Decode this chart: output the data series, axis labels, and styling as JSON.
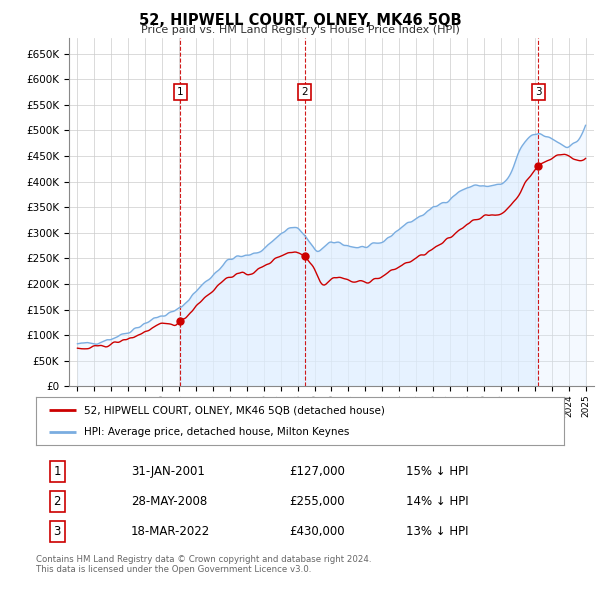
{
  "title": "52, HIPWELL COURT, OLNEY, MK46 5QB",
  "subtitle": "Price paid vs. HM Land Registry's House Price Index (HPI)",
  "property_label": "52, HIPWELL COURT, OLNEY, MK46 5QB (detached house)",
  "hpi_label": "HPI: Average price, detached house, Milton Keynes",
  "sale_points": [
    {
      "date": 2001.08,
      "price": 127000,
      "label": "1"
    },
    {
      "date": 2008.41,
      "price": 255000,
      "label": "2"
    },
    {
      "date": 2022.21,
      "price": 430000,
      "label": "3"
    }
  ],
  "sale_vlines": [
    2001.08,
    2008.41,
    2022.21
  ],
  "table_rows": [
    {
      "num": "1",
      "date": "31-JAN-2001",
      "price": "£127,000",
      "note": "15% ↓ HPI"
    },
    {
      "num": "2",
      "date": "28-MAY-2008",
      "price": "£255,000",
      "note": "14% ↓ HPI"
    },
    {
      "num": "3",
      "date": "18-MAR-2022",
      "price": "£430,000",
      "note": "13% ↓ HPI"
    }
  ],
  "footer": "Contains HM Land Registry data © Crown copyright and database right 2024.\nThis data is licensed under the Open Government Licence v3.0.",
  "red_color": "#cc0000",
  "blue_color": "#7aade0",
  "blue_fill": "#ddeeff",
  "ylim": [
    0,
    680000
  ],
  "yticks": [
    0,
    50000,
    100000,
    150000,
    200000,
    250000,
    300000,
    350000,
    400000,
    450000,
    500000,
    550000,
    600000,
    650000
  ],
  "xlim": [
    1994.5,
    2025.5
  ],
  "bg_color": "#ffffff",
  "grid_color": "#cccccc"
}
